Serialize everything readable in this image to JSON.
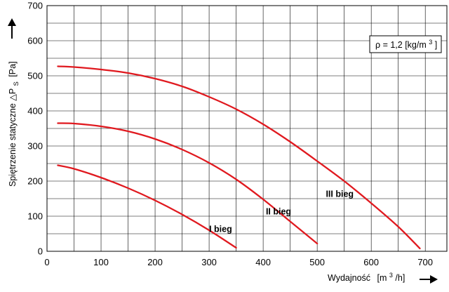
{
  "chart_data": {
    "type": "line",
    "title": "",
    "xlabel_main": "Wydajność",
    "xlabel_unit_pre": "[m",
    "xlabel_unit_sup": "3",
    "xlabel_unit_post": "/h]",
    "ylabel_main": "Spiętrzenie statyczne △P",
    "ylabel_sub": "S",
    "ylabel_unit": "[Pa]",
    "xlim": [
      0,
      740
    ],
    "ylim": [
      0,
      700
    ],
    "x_ticks": [
      0,
      100,
      200,
      300,
      400,
      500,
      600,
      700
    ],
    "y_ticks": [
      0,
      100,
      200,
      300,
      400,
      500,
      600,
      700
    ],
    "x_tick_labels": [
      "0",
      "100",
      "200",
      "300",
      "400",
      "500",
      "600",
      "700"
    ],
    "y_tick_labels": [
      "0",
      "100",
      "200",
      "300",
      "400",
      "500",
      "600",
      "700"
    ],
    "grid": true,
    "grid_step_x": 50,
    "grid_step_y": 50,
    "line_color": "#e0191f",
    "annotation": {
      "rho": "ρ = 1,2 [kg/m",
      "sup": "3",
      "close": "]"
    },
    "series": [
      {
        "name": "I bieg",
        "x": [
          20,
          50,
          100,
          150,
          200,
          250,
          300,
          350
        ],
        "y": [
          245,
          235,
          210,
          180,
          145,
          105,
          60,
          10
        ]
      },
      {
        "name": "II bieg",
        "x": [
          20,
          50,
          100,
          150,
          200,
          250,
          300,
          350,
          400,
          450,
          500
        ],
        "y": [
          365,
          364,
          356,
          342,
          320,
          290,
          252,
          205,
          148,
          85,
          22
        ]
      },
      {
        "name": "III bieg",
        "x": [
          20,
          50,
          100,
          150,
          200,
          250,
          300,
          350,
          400,
          450,
          500,
          550,
          600,
          650,
          690
        ],
        "y": [
          527,
          525,
          518,
          508,
          492,
          470,
          440,
          405,
          362,
          312,
          257,
          200,
          137,
          70,
          8
        ]
      }
    ]
  }
}
